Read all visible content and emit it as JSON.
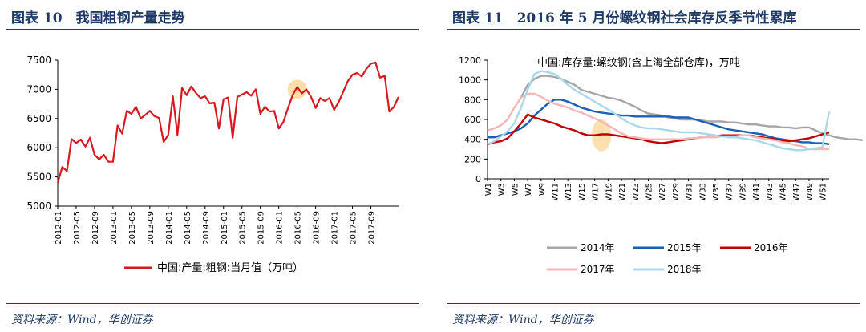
{
  "left": {
    "title": "图表 10　我国粗钢产量走势",
    "source": "资料来源：Wind，华创证券",
    "chart_data": {
      "type": "line",
      "title": "",
      "xlabel": "",
      "ylabel": "",
      "ylim": [
        5000,
        7500
      ],
      "yticks": [
        "5000",
        "5500",
        "6000",
        "6500",
        "7000",
        "7500"
      ],
      "xticks": [
        "2012-01",
        "2012-05",
        "2012-09",
        "2013-01",
        "2013-05",
        "2013-09",
        "2014-01",
        "2014-05",
        "2014-09",
        "2015-01",
        "2015-05",
        "2015-09",
        "2016-01",
        "2016-05",
        "2016-09",
        "2017-01",
        "2017-05",
        "2017-09"
      ],
      "legend_position": "bottom",
      "highlight": {
        "x": "2016-05",
        "y": 7000
      },
      "series": [
        {
          "name": "中国:产量:粗钢:当月值（万吨）",
          "color": "#d71920",
          "values": [
            5400,
            5670,
            5600,
            6150,
            6080,
            6140,
            6020,
            6170,
            5880,
            5800,
            5880,
            5760,
            5760,
            6380,
            6240,
            6630,
            6580,
            6700,
            6500,
            6560,
            6630,
            6540,
            6510,
            6100,
            6220,
            6880,
            6220,
            7020,
            6900,
            7050,
            6940,
            6850,
            6880,
            6760,
            6770,
            6330,
            6830,
            6860,
            6170,
            6870,
            6910,
            6950,
            6890,
            7000,
            6580,
            6700,
            6620,
            6630,
            6330,
            6440,
            6680,
            6900,
            7040,
            6930,
            7000,
            6870,
            6680,
            6850,
            6800,
            6850,
            6650,
            6780,
            6960,
            7140,
            7250,
            7280,
            7220,
            7350,
            7440,
            7460,
            7200,
            7230,
            6620,
            6700,
            6870
          ]
        }
      ]
    }
  },
  "right": {
    "title": "图表 11　2016 年 5 月份螺纹钢社会库存反季节性累库",
    "source": "资料来源：Wind，华创证券",
    "chart_data": {
      "type": "line",
      "title": "中国:库存量:螺纹钢(含上海全部仓库)，万吨",
      "xlabel": "",
      "ylabel": "",
      "ylim": [
        0,
        1200
      ],
      "yticks": [
        "0",
        "200",
        "400",
        "600",
        "800",
        "1000",
        "1200"
      ],
      "xticks": [
        "W1",
        "W3",
        "W5",
        "W7",
        "W9",
        "W11",
        "W13",
        "W15",
        "W17",
        "W19",
        "W21",
        "W23",
        "W25",
        "W27",
        "W29",
        "W31",
        "W33",
        "W35",
        "W37",
        "W39",
        "W41",
        "W43",
        "W45",
        "W47",
        "W49",
        "W51"
      ],
      "legend_position": "bottom",
      "highlight": {
        "x": "W18",
        "y": 440
      },
      "series": [
        {
          "name": "2014年",
          "color": "#a6a6a6",
          "start_week": 6,
          "values": [
            820,
            950,
            1010,
            1040,
            1040,
            1030,
            1010,
            980,
            950,
            900,
            880,
            860,
            840,
            820,
            810,
            790,
            760,
            730,
            690,
            660,
            650,
            640,
            620,
            610,
            600,
            600,
            600,
            590,
            580,
            580,
            580,
            570,
            570,
            560,
            550,
            550,
            540,
            530,
            530,
            520,
            520,
            510,
            520,
            520,
            490,
            460,
            440,
            420,
            410,
            400,
            400,
            390
          ]
        },
        {
          "name": "2015年",
          "color": "#1a5fb4",
          "start_week": 1,
          "values": [
            420,
            420,
            440,
            460,
            480,
            510,
            560,
            640,
            700,
            760,
            800,
            800,
            780,
            750,
            720,
            700,
            680,
            670,
            660,
            650,
            640,
            640,
            630,
            630,
            630,
            630,
            630,
            630,
            620,
            620,
            620,
            600,
            580,
            560,
            540,
            520,
            500,
            490,
            480,
            470,
            460,
            450,
            430,
            410,
            400,
            390,
            380,
            370,
            370,
            360,
            360,
            350
          ]
        },
        {
          "name": "2016年",
          "color": "#c00000",
          "start_week": 1,
          "values": [
            350,
            370,
            380,
            410,
            480,
            560,
            650,
            620,
            600,
            580,
            560,
            530,
            510,
            490,
            460,
            440,
            440,
            450,
            450,
            440,
            430,
            420,
            410,
            400,
            380,
            370,
            360,
            370,
            380,
            390,
            400,
            410,
            420,
            430,
            430,
            440,
            440,
            440,
            440,
            440,
            430,
            420,
            410,
            400,
            390,
            380,
            390,
            400,
            410,
            430,
            450,
            470
          ]
        },
        {
          "name": "2017年",
          "color": "#f4b6b6",
          "start_week": 1,
          "values": [
            490,
            510,
            540,
            600,
            720,
            820,
            860,
            860,
            830,
            790,
            760,
            740,
            720,
            690,
            670,
            640,
            610,
            580,
            540,
            500,
            460,
            430,
            420,
            410,
            400,
            400,
            400,
            400,
            400,
            400,
            410,
            410,
            420,
            420,
            420,
            430,
            430,
            430,
            440,
            440,
            420,
            410,
            400,
            390,
            370,
            360,
            340,
            330,
            300,
            300,
            300,
            300
          ]
        },
        {
          "name": "2018年",
          "color": "#a9d8ea",
          "start_week": 1,
          "values": [
            350,
            380,
            430,
            480,
            560,
            720,
            900,
            1060,
            1090,
            1080,
            1060,
            1010,
            950,
            900,
            860,
            820,
            780,
            740,
            700,
            660,
            610,
            570,
            540,
            520,
            510,
            510,
            500,
            490,
            480,
            470,
            470,
            470,
            460,
            450,
            440,
            430,
            420,
            420,
            410,
            400,
            390,
            370,
            350,
            330,
            310,
            300,
            290,
            290,
            300,
            310,
            320,
            680
          ]
        }
      ]
    }
  }
}
